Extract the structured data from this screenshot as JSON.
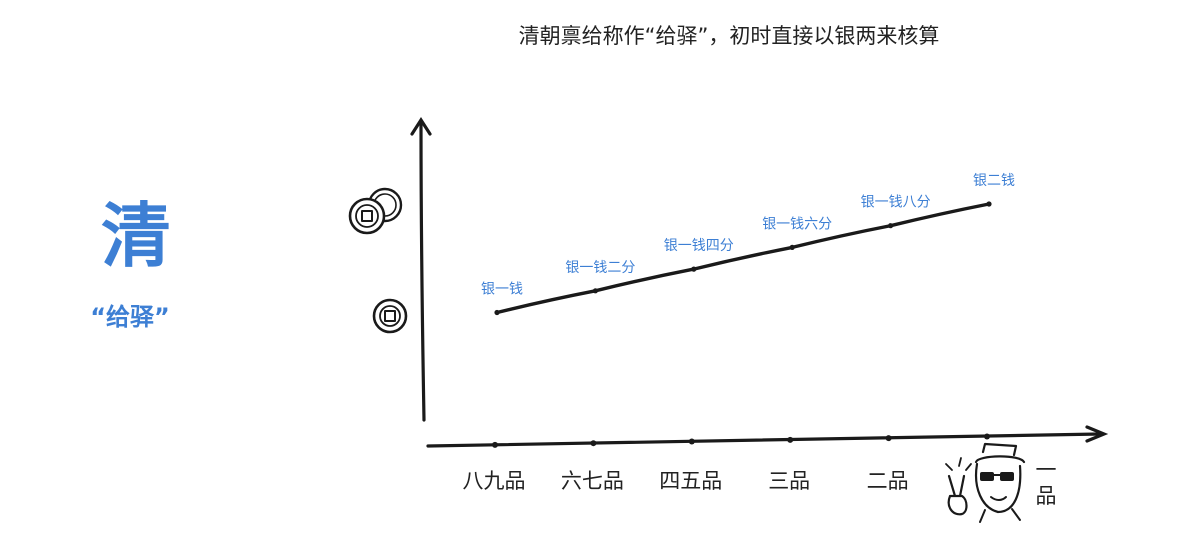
{
  "title": "清朝禀给称作“给驿”，初时直接以银两来核算",
  "dynasty": {
    "char": "清",
    "subtitle": "“给驿”"
  },
  "colors": {
    "accent": "#3d7fd4",
    "ink": "#1a1a1a",
    "text": "#222222"
  },
  "icons": {
    "y_axis_upper": "double-coin-icon",
    "y_axis_lower": "coin-icon",
    "mascot": "qing-official-sunglasses-icon"
  },
  "chart_data": {
    "type": "line",
    "categories": [
      "八九品",
      "六七品",
      "四五品",
      "三品",
      "二品",
      "一品"
    ],
    "series": [
      {
        "values": [
          1.0,
          1.2,
          1.4,
          1.6,
          1.8,
          2.0
        ]
      }
    ],
    "data_labels": [
      "银一钱",
      "银一钱二分",
      "银一钱四分",
      "银一钱六分",
      "银一钱八分",
      "银二钱"
    ],
    "value_unit": "钱",
    "ylim": [
      0,
      2.4
    ],
    "grid": false
  }
}
